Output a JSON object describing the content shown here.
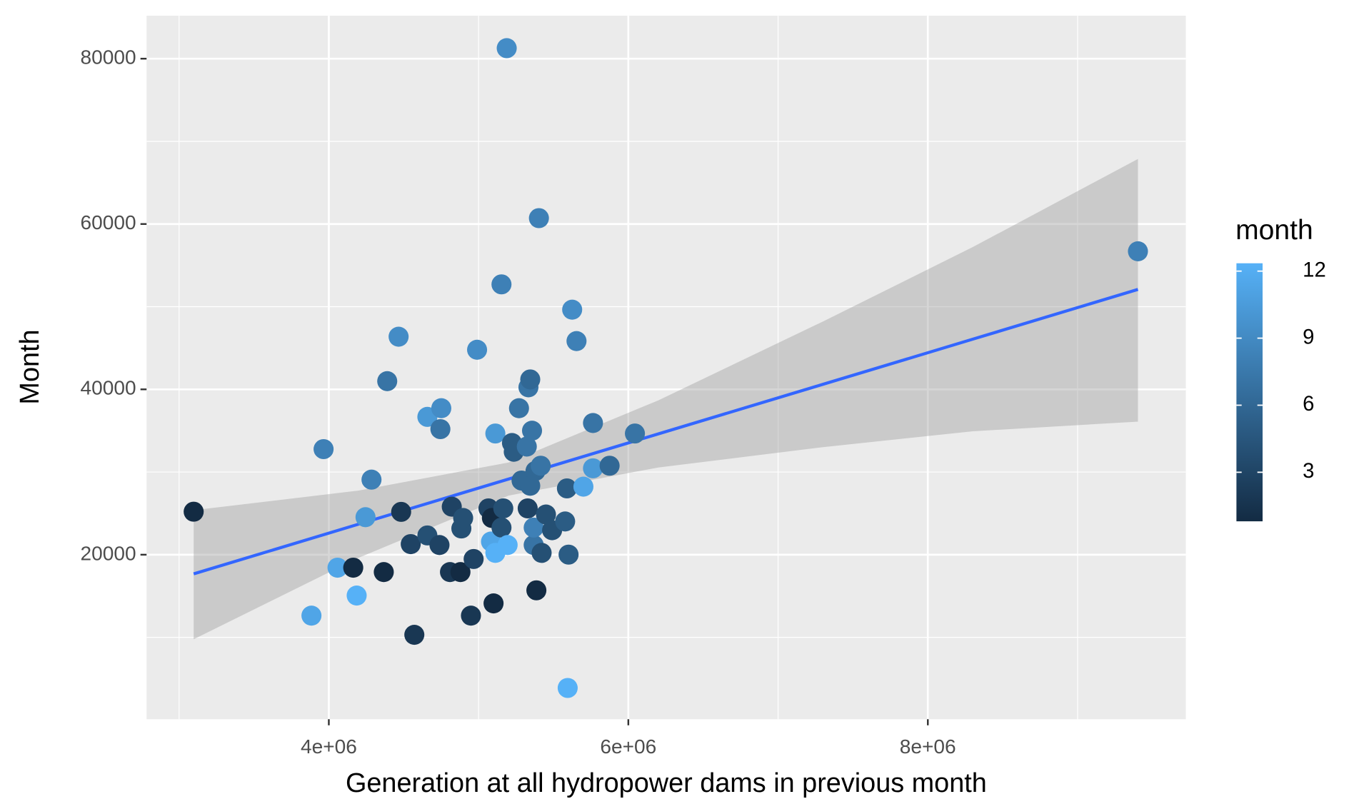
{
  "chart_data": {
    "type": "scatter",
    "x_label": "Generation at all hydropower dams in previous month",
    "y_label": "Month",
    "x": [
      3097500,
      3884000,
      3965000,
      4058000,
      4163000,
      4186000,
      4245000,
      4285000,
      4367000,
      4390000,
      4466000,
      4483000,
      4547000,
      4571000,
      4658000,
      4658000,
      4739000,
      4751000,
      4745000,
      4821000,
      4809000,
      4879000,
      4885000,
      4897000,
      4949000,
      4967000,
      4990000,
      5066000,
      5089000,
      5100000,
      5083000,
      5112000,
      5112000,
      5153000,
      5153000,
      5165000,
      5188000,
      5194000,
      5223000,
      5235000,
      5270000,
      5287000,
      5328000,
      5333000,
      5345000,
      5322000,
      5345000,
      5357000,
      5368000,
      5368000,
      5380000,
      5386000,
      5403000,
      5415000,
      5421000,
      5450000,
      5491000,
      5578000,
      5590000,
      5601000,
      5595000,
      5625000,
      5654000,
      5700000,
      5764000,
      5764000,
      5875000,
      6044000,
      9403000
    ],
    "values": [
      25200,
      12630,
      32770,
      18430,
      18430,
      15060,
      24540,
      29080,
      17900,
      40990,
      46370,
      25180,
      21280,
      10310,
      36670,
      22330,
      21170,
      37720,
      35190,
      25810,
      17900,
      17900,
      23170,
      24440,
      12630,
      19480,
      44790,
      25600,
      24440,
      14110,
      21590,
      20220,
      34660,
      52700,
      23280,
      25600,
      81270,
      21170,
      33510,
      32450,
      37720,
      28970,
      25600,
      40250,
      41200,
      33080,
      28340,
      35000,
      21170,
      23280,
      30130,
      15690,
      60710,
      30760,
      20220,
      24860,
      22960,
      24020,
      28020,
      20010,
      3880,
      49640,
      45840,
      28230,
      30450,
      35930,
      30760,
      34660,
      56700
    ],
    "month": [
      1,
      11,
      8,
      11,
      1,
      12,
      10,
      8,
      1,
      7,
      9,
      2,
      3,
      2,
      10,
      4,
      3,
      9,
      7,
      3,
      2,
      1,
      4,
      4,
      2,
      3,
      9,
      3,
      1,
      1,
      11,
      12,
      10,
      8,
      4,
      4,
      9,
      12,
      5,
      5,
      7,
      6,
      3,
      7,
      6,
      7,
      6,
      7,
      7,
      8,
      6,
      1,
      8,
      7,
      4,
      4,
      4,
      5,
      5,
      5,
      12,
      9,
      8,
      11,
      10,
      7,
      6,
      7,
      8
    ],
    "color_low": "#132B43",
    "color_high": "#56B1F7",
    "legend_title": "month",
    "clim": [
      1,
      12
    ],
    "cticks": [
      3,
      6,
      9,
      12
    ],
    "fit": {
      "color": "#3366FF",
      "band_color": "#999999",
      "x": [
        3097500,
        4200000,
        5200000,
        6200000,
        7300000,
        8300000,
        9403000
      ],
      "y": [
        17680,
        23700,
        29150,
        34610,
        40610,
        46070,
        52090
      ],
      "ymin": [
        9770,
        19640,
        27150,
        30550,
        33010,
        34930,
        36100
      ],
      "ymax": [
        25380,
        27760,
        31150,
        38670,
        48210,
        57210,
        67870
      ]
    },
    "xlim": [
      2783000,
      9723000
    ],
    "ylim": [
      100,
      85200
    ],
    "xticks": [
      {
        "value": 4000000,
        "label": "4e+06"
      },
      {
        "value": 6000000,
        "label": "6e+06"
      },
      {
        "value": 8000000,
        "label": "8e+06"
      }
    ],
    "yticks": [
      20000,
      40000,
      60000,
      80000
    ],
    "grid": true
  }
}
